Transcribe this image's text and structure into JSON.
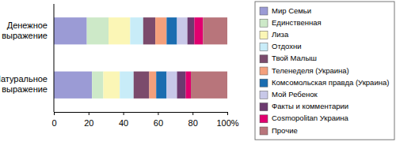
{
  "chart_data": {
    "type": "bar",
    "orientation": "horizontal",
    "stacked": true,
    "legend": "right",
    "categories": [
      "Денежное выражение",
      "Натуральное выражение"
    ],
    "xlim": [
      0,
      100
    ],
    "xticks": [
      0,
      20,
      40,
      60,
      80,
      {
        "value": 100,
        "label": "100%"
      }
    ],
    "series": [
      {
        "name": "Мир Семьи",
        "color": "#9b9bd5",
        "values": [
          19,
          22
        ]
      },
      {
        "name": "Единственная",
        "color": "#cde9c8",
        "values": [
          12.5,
          6.5
        ]
      },
      {
        "name": "Лиза",
        "color": "#fbf6b6",
        "values": [
          12.5,
          9.5
        ]
      },
      {
        "name": "Отдохни",
        "color": "#c8ecf8",
        "values": [
          7.5,
          8
        ]
      },
      {
        "name": "Твой Малыш",
        "color": "#7b4b6c",
        "values": [
          7,
          9
        ]
      },
      {
        "name": "Теленеделя (Украина)",
        "color": "#f4a07c",
        "values": [
          6.5,
          4
        ]
      },
      {
        "name": "Комсомольская правда (Украина)",
        "color": "#1b6db0",
        "values": [
          6,
          6
        ]
      },
      {
        "name": "Мой Ребенок",
        "color": "#c8c8e8",
        "values": [
          6,
          6
        ]
      },
      {
        "name": "Факты и комментарии",
        "color": "#6c3a6f",
        "values": [
          4,
          5
        ]
      },
      {
        "name": "Cosmopolitan Украина",
        "color": "#e0006f",
        "values": [
          5,
          3
        ]
      },
      {
        "name": "Прочие",
        "color": "#b8757b",
        "values": [
          14,
          21
        ]
      }
    ]
  }
}
